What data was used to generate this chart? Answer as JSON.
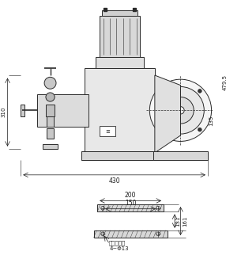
{
  "bg_color": "#ffffff",
  "line_color": "#2a2a2a",
  "dim_color": "#1a1a1a",
  "d479": "479.5",
  "d310": "310",
  "d135": "135",
  "d430": "430",
  "d200": "200",
  "d150": "150",
  "d131": "131",
  "d161": "161",
  "note": "机座尺十图",
  "bolt": "4~Φ13"
}
